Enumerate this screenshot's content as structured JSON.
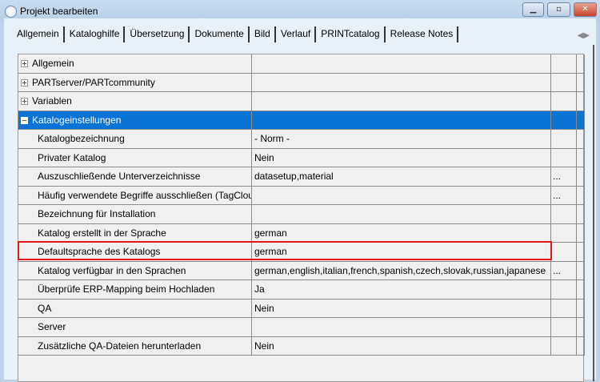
{
  "window": {
    "title": "Projekt bearbeiten",
    "minimize": "▁",
    "maximize": "▫",
    "close": "✕"
  },
  "tabs": [
    {
      "label": "Allgemein"
    },
    {
      "label": "Kataloghilfe"
    },
    {
      "label": "Übersetzung"
    },
    {
      "label": "Dokumente"
    },
    {
      "label": "Bild"
    },
    {
      "label": "Verlauf"
    },
    {
      "label": "PRINTcatalog"
    },
    {
      "label": "Release Notes"
    }
  ],
  "tab_scroll": {
    "left": "◀",
    "right": "▶"
  },
  "groups": [
    {
      "label": "Allgemein"
    },
    {
      "label": "PARTserver/PARTcommunity"
    },
    {
      "label": "Variablen"
    },
    {
      "label": "Katalogeinstellungen"
    }
  ],
  "properties": [
    {
      "name": "Katalogbezeichnung",
      "value": "- Norm -",
      "button": ""
    },
    {
      "name": "Privater Katalog",
      "value": "Nein",
      "button": ""
    },
    {
      "name": "Auszuschließende Unterverzeichnisse",
      "value": "datasetup,material",
      "button": "..."
    },
    {
      "name": "Häufig verwendete Begriffe ausschließen (TagCloud)",
      "value": "",
      "button": "..."
    },
    {
      "name": "Bezeichnung für Installation",
      "value": "",
      "button": ""
    },
    {
      "name": "Katalog erstellt in der Sprache",
      "value": "german",
      "button": ""
    },
    {
      "name": "Defaultsprache des Katalogs",
      "value": "german",
      "button": ""
    },
    {
      "name": "Katalog verfügbar in den Sprachen",
      "value": "german,english,italian,french,spanish,czech,slovak,russian,japanese",
      "button": "..."
    },
    {
      "name": "Überprüfe ERP-Mapping beim Hochladen",
      "value": "Ja",
      "button": ""
    },
    {
      "name": "QA",
      "value": "Nein",
      "button": ""
    },
    {
      "name": "Server",
      "value": "",
      "button": ""
    },
    {
      "name": "Zusätzliche QA-Dateien herunterladen",
      "value": "Nein",
      "button": ""
    }
  ],
  "selection_color": "#0a74d6",
  "highlight_color": "#e8141a"
}
